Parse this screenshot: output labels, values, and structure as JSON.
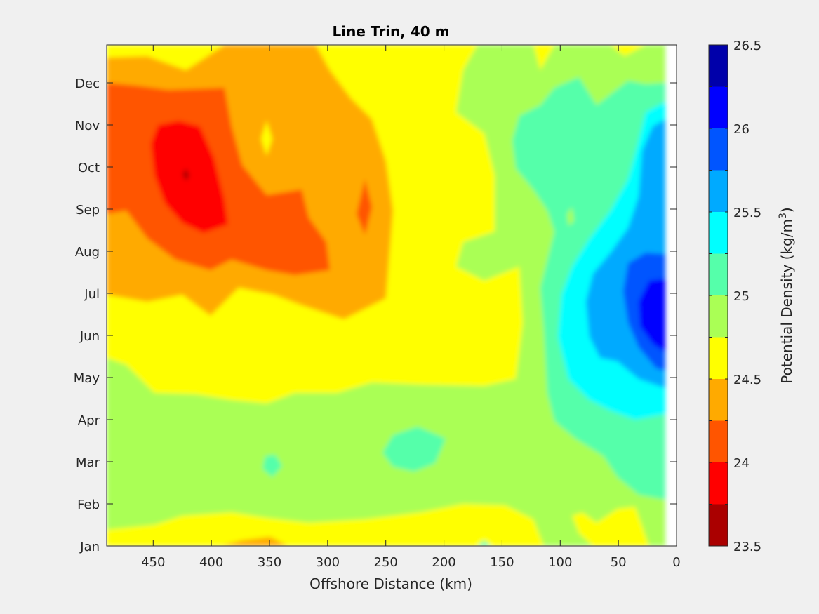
{
  "chart_data": {
    "type": "heatmap",
    "title": "Line Trin, 40 m",
    "xlabel": "Offshore Distance (km)",
    "ylabel": "",
    "xlim": [
      490,
      0
    ],
    "x_ticks": [
      450,
      400,
      350,
      300,
      250,
      200,
      150,
      100,
      50,
      0
    ],
    "ylim": [
      0,
      11.9
    ],
    "y_tick_values": [
      0,
      1,
      2,
      3,
      4,
      5,
      6,
      7,
      8,
      9,
      10,
      11
    ],
    "y_tick_labels": [
      "Jan",
      "Feb",
      "Mar",
      "Apr",
      "May",
      "Jun",
      "Jul",
      "Aug",
      "Sep",
      "Oct",
      "Nov",
      "Dec"
    ],
    "colorbar": {
      "label": "Potential Density (kg/m",
      "label_sup": "3",
      "label_end": ")",
      "range": [
        23.5,
        26.5
      ],
      "tick_values": [
        23.5,
        24,
        24.5,
        25,
        25.5,
        26,
        26.5
      ],
      "tick_labels": [
        "23.5",
        "24",
        "24.5",
        "25",
        "25.5",
        "26",
        "26.5"
      ],
      "levels": [
        23.5,
        23.75,
        24,
        24.25,
        24.5,
        24.75,
        25,
        25.25,
        25.5,
        25.75,
        26,
        26.25,
        26.5
      ],
      "colors": [
        "#aa0000",
        "#ff0000",
        "#ff5500",
        "#ffaa00",
        "#ffff00",
        "#aaff55",
        "#55ffaa",
        "#00ffff",
        "#00aaff",
        "#0055ff",
        "#0000ff",
        "#0000aa"
      ]
    },
    "grid": false,
    "data_x_extent_km": [
      490,
      10
    ]
  }
}
